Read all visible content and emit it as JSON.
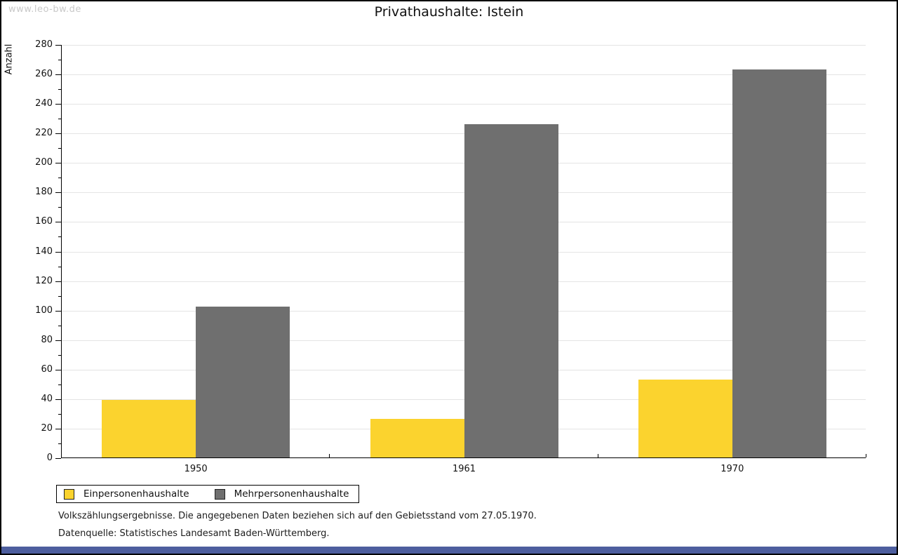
{
  "watermark": "www.leo-bw.de",
  "chart_data": {
    "type": "bar",
    "title": "Privathaushalte: Istein",
    "ylabel": "Anzahl",
    "xlabel": "",
    "categories": [
      "1950",
      "1961",
      "1970"
    ],
    "series": [
      {
        "name": "Einpersonenhaushalte",
        "color": "#FBD32E",
        "values": [
          39,
          26,
          53
        ]
      },
      {
        "name": "Mehrpersonenhaushalte",
        "color": "#6F6F6F",
        "values": [
          102,
          226,
          263
        ]
      }
    ],
    "ylim": [
      0,
      280
    ],
    "ytick_step": 20,
    "ytick_minor_step": 10,
    "grid": true,
    "legend_position": "bottom-left"
  },
  "footer": {
    "note": "Volkszählungsergebnisse. Die angegebenen Daten beziehen sich auf den Gebietsstand vom 27.05.1970.",
    "source": "Datenquelle: Statistisches Landesamt Baden-Württemberg."
  },
  "colors": {
    "gridline": "#E4E4E4",
    "axis": "#000000",
    "watermark": "#C9C9C9",
    "bottom_bar": "#4D5E9E"
  }
}
